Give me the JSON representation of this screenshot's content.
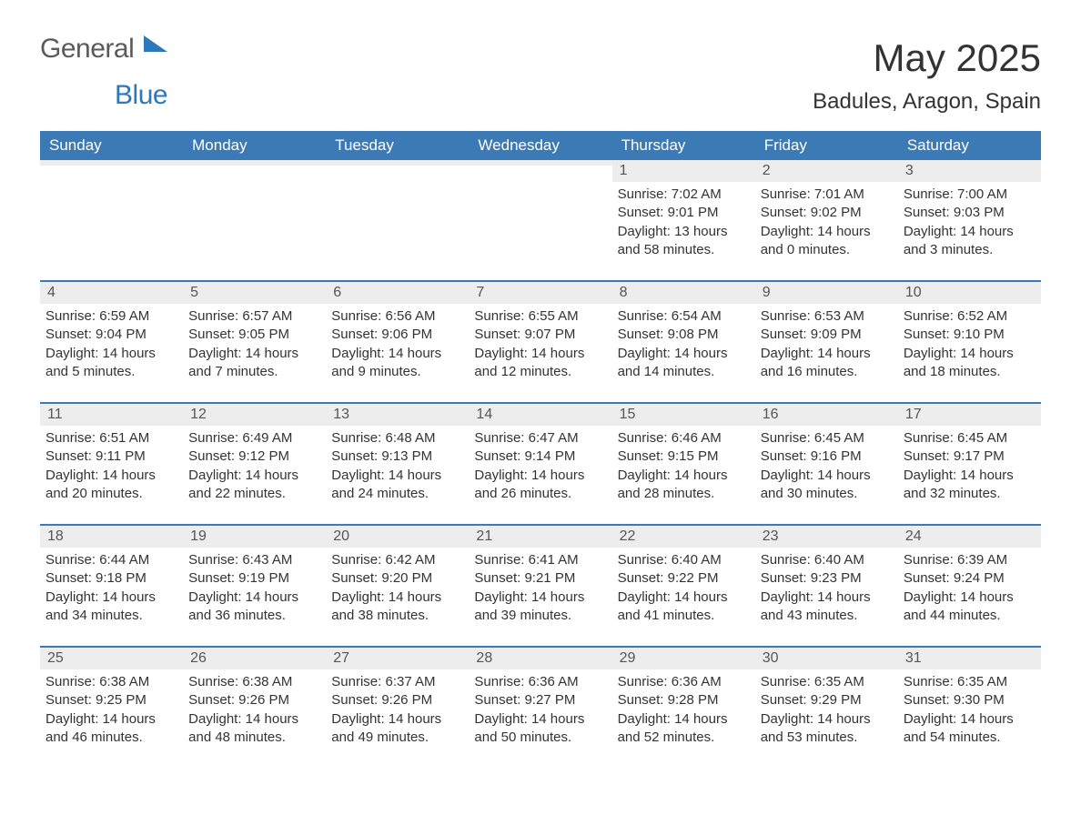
{
  "logo": {
    "word1": "General",
    "word2": "Blue"
  },
  "title": "May 2025",
  "location": "Badules, Aragon, Spain",
  "colors": {
    "header_bg": "#3c7ab6",
    "header_text": "#ffffff",
    "daynum_bg": "#ededed",
    "daynum_text": "#555555",
    "body_text": "#333333",
    "rule": "#3c7ab6",
    "logo_gray": "#5a5a5a",
    "logo_blue": "#2f77bb",
    "page_bg": "#ffffff"
  },
  "typography": {
    "title_fontsize": 42,
    "location_fontsize": 24,
    "header_fontsize": 17,
    "daynum_fontsize": 16,
    "body_fontsize": 15
  },
  "day_headers": [
    "Sunday",
    "Monday",
    "Tuesday",
    "Wednesday",
    "Thursday",
    "Friday",
    "Saturday"
  ],
  "weeks": [
    [
      {
        "n": "",
        "sr": "",
        "ss": "",
        "dl": ""
      },
      {
        "n": "",
        "sr": "",
        "ss": "",
        "dl": ""
      },
      {
        "n": "",
        "sr": "",
        "ss": "",
        "dl": ""
      },
      {
        "n": "",
        "sr": "",
        "ss": "",
        "dl": ""
      },
      {
        "n": "1",
        "sr": "Sunrise: 7:02 AM",
        "ss": "Sunset: 9:01 PM",
        "dl": "Daylight: 13 hours and 58 minutes."
      },
      {
        "n": "2",
        "sr": "Sunrise: 7:01 AM",
        "ss": "Sunset: 9:02 PM",
        "dl": "Daylight: 14 hours and 0 minutes."
      },
      {
        "n": "3",
        "sr": "Sunrise: 7:00 AM",
        "ss": "Sunset: 9:03 PM",
        "dl": "Daylight: 14 hours and 3 minutes."
      }
    ],
    [
      {
        "n": "4",
        "sr": "Sunrise: 6:59 AM",
        "ss": "Sunset: 9:04 PM",
        "dl": "Daylight: 14 hours and 5 minutes."
      },
      {
        "n": "5",
        "sr": "Sunrise: 6:57 AM",
        "ss": "Sunset: 9:05 PM",
        "dl": "Daylight: 14 hours and 7 minutes."
      },
      {
        "n": "6",
        "sr": "Sunrise: 6:56 AM",
        "ss": "Sunset: 9:06 PM",
        "dl": "Daylight: 14 hours and 9 minutes."
      },
      {
        "n": "7",
        "sr": "Sunrise: 6:55 AM",
        "ss": "Sunset: 9:07 PM",
        "dl": "Daylight: 14 hours and 12 minutes."
      },
      {
        "n": "8",
        "sr": "Sunrise: 6:54 AM",
        "ss": "Sunset: 9:08 PM",
        "dl": "Daylight: 14 hours and 14 minutes."
      },
      {
        "n": "9",
        "sr": "Sunrise: 6:53 AM",
        "ss": "Sunset: 9:09 PM",
        "dl": "Daylight: 14 hours and 16 minutes."
      },
      {
        "n": "10",
        "sr": "Sunrise: 6:52 AM",
        "ss": "Sunset: 9:10 PM",
        "dl": "Daylight: 14 hours and 18 minutes."
      }
    ],
    [
      {
        "n": "11",
        "sr": "Sunrise: 6:51 AM",
        "ss": "Sunset: 9:11 PM",
        "dl": "Daylight: 14 hours and 20 minutes."
      },
      {
        "n": "12",
        "sr": "Sunrise: 6:49 AM",
        "ss": "Sunset: 9:12 PM",
        "dl": "Daylight: 14 hours and 22 minutes."
      },
      {
        "n": "13",
        "sr": "Sunrise: 6:48 AM",
        "ss": "Sunset: 9:13 PM",
        "dl": "Daylight: 14 hours and 24 minutes."
      },
      {
        "n": "14",
        "sr": "Sunrise: 6:47 AM",
        "ss": "Sunset: 9:14 PM",
        "dl": "Daylight: 14 hours and 26 minutes."
      },
      {
        "n": "15",
        "sr": "Sunrise: 6:46 AM",
        "ss": "Sunset: 9:15 PM",
        "dl": "Daylight: 14 hours and 28 minutes."
      },
      {
        "n": "16",
        "sr": "Sunrise: 6:45 AM",
        "ss": "Sunset: 9:16 PM",
        "dl": "Daylight: 14 hours and 30 minutes."
      },
      {
        "n": "17",
        "sr": "Sunrise: 6:45 AM",
        "ss": "Sunset: 9:17 PM",
        "dl": "Daylight: 14 hours and 32 minutes."
      }
    ],
    [
      {
        "n": "18",
        "sr": "Sunrise: 6:44 AM",
        "ss": "Sunset: 9:18 PM",
        "dl": "Daylight: 14 hours and 34 minutes."
      },
      {
        "n": "19",
        "sr": "Sunrise: 6:43 AM",
        "ss": "Sunset: 9:19 PM",
        "dl": "Daylight: 14 hours and 36 minutes."
      },
      {
        "n": "20",
        "sr": "Sunrise: 6:42 AM",
        "ss": "Sunset: 9:20 PM",
        "dl": "Daylight: 14 hours and 38 minutes."
      },
      {
        "n": "21",
        "sr": "Sunrise: 6:41 AM",
        "ss": "Sunset: 9:21 PM",
        "dl": "Daylight: 14 hours and 39 minutes."
      },
      {
        "n": "22",
        "sr": "Sunrise: 6:40 AM",
        "ss": "Sunset: 9:22 PM",
        "dl": "Daylight: 14 hours and 41 minutes."
      },
      {
        "n": "23",
        "sr": "Sunrise: 6:40 AM",
        "ss": "Sunset: 9:23 PM",
        "dl": "Daylight: 14 hours and 43 minutes."
      },
      {
        "n": "24",
        "sr": "Sunrise: 6:39 AM",
        "ss": "Sunset: 9:24 PM",
        "dl": "Daylight: 14 hours and 44 minutes."
      }
    ],
    [
      {
        "n": "25",
        "sr": "Sunrise: 6:38 AM",
        "ss": "Sunset: 9:25 PM",
        "dl": "Daylight: 14 hours and 46 minutes."
      },
      {
        "n": "26",
        "sr": "Sunrise: 6:38 AM",
        "ss": "Sunset: 9:26 PM",
        "dl": "Daylight: 14 hours and 48 minutes."
      },
      {
        "n": "27",
        "sr": "Sunrise: 6:37 AM",
        "ss": "Sunset: 9:26 PM",
        "dl": "Daylight: 14 hours and 49 minutes."
      },
      {
        "n": "28",
        "sr": "Sunrise: 6:36 AM",
        "ss": "Sunset: 9:27 PM",
        "dl": "Daylight: 14 hours and 50 minutes."
      },
      {
        "n": "29",
        "sr": "Sunrise: 6:36 AM",
        "ss": "Sunset: 9:28 PM",
        "dl": "Daylight: 14 hours and 52 minutes."
      },
      {
        "n": "30",
        "sr": "Sunrise: 6:35 AM",
        "ss": "Sunset: 9:29 PM",
        "dl": "Daylight: 14 hours and 53 minutes."
      },
      {
        "n": "31",
        "sr": "Sunrise: 6:35 AM",
        "ss": "Sunset: 9:30 PM",
        "dl": "Daylight: 14 hours and 54 minutes."
      }
    ]
  ]
}
